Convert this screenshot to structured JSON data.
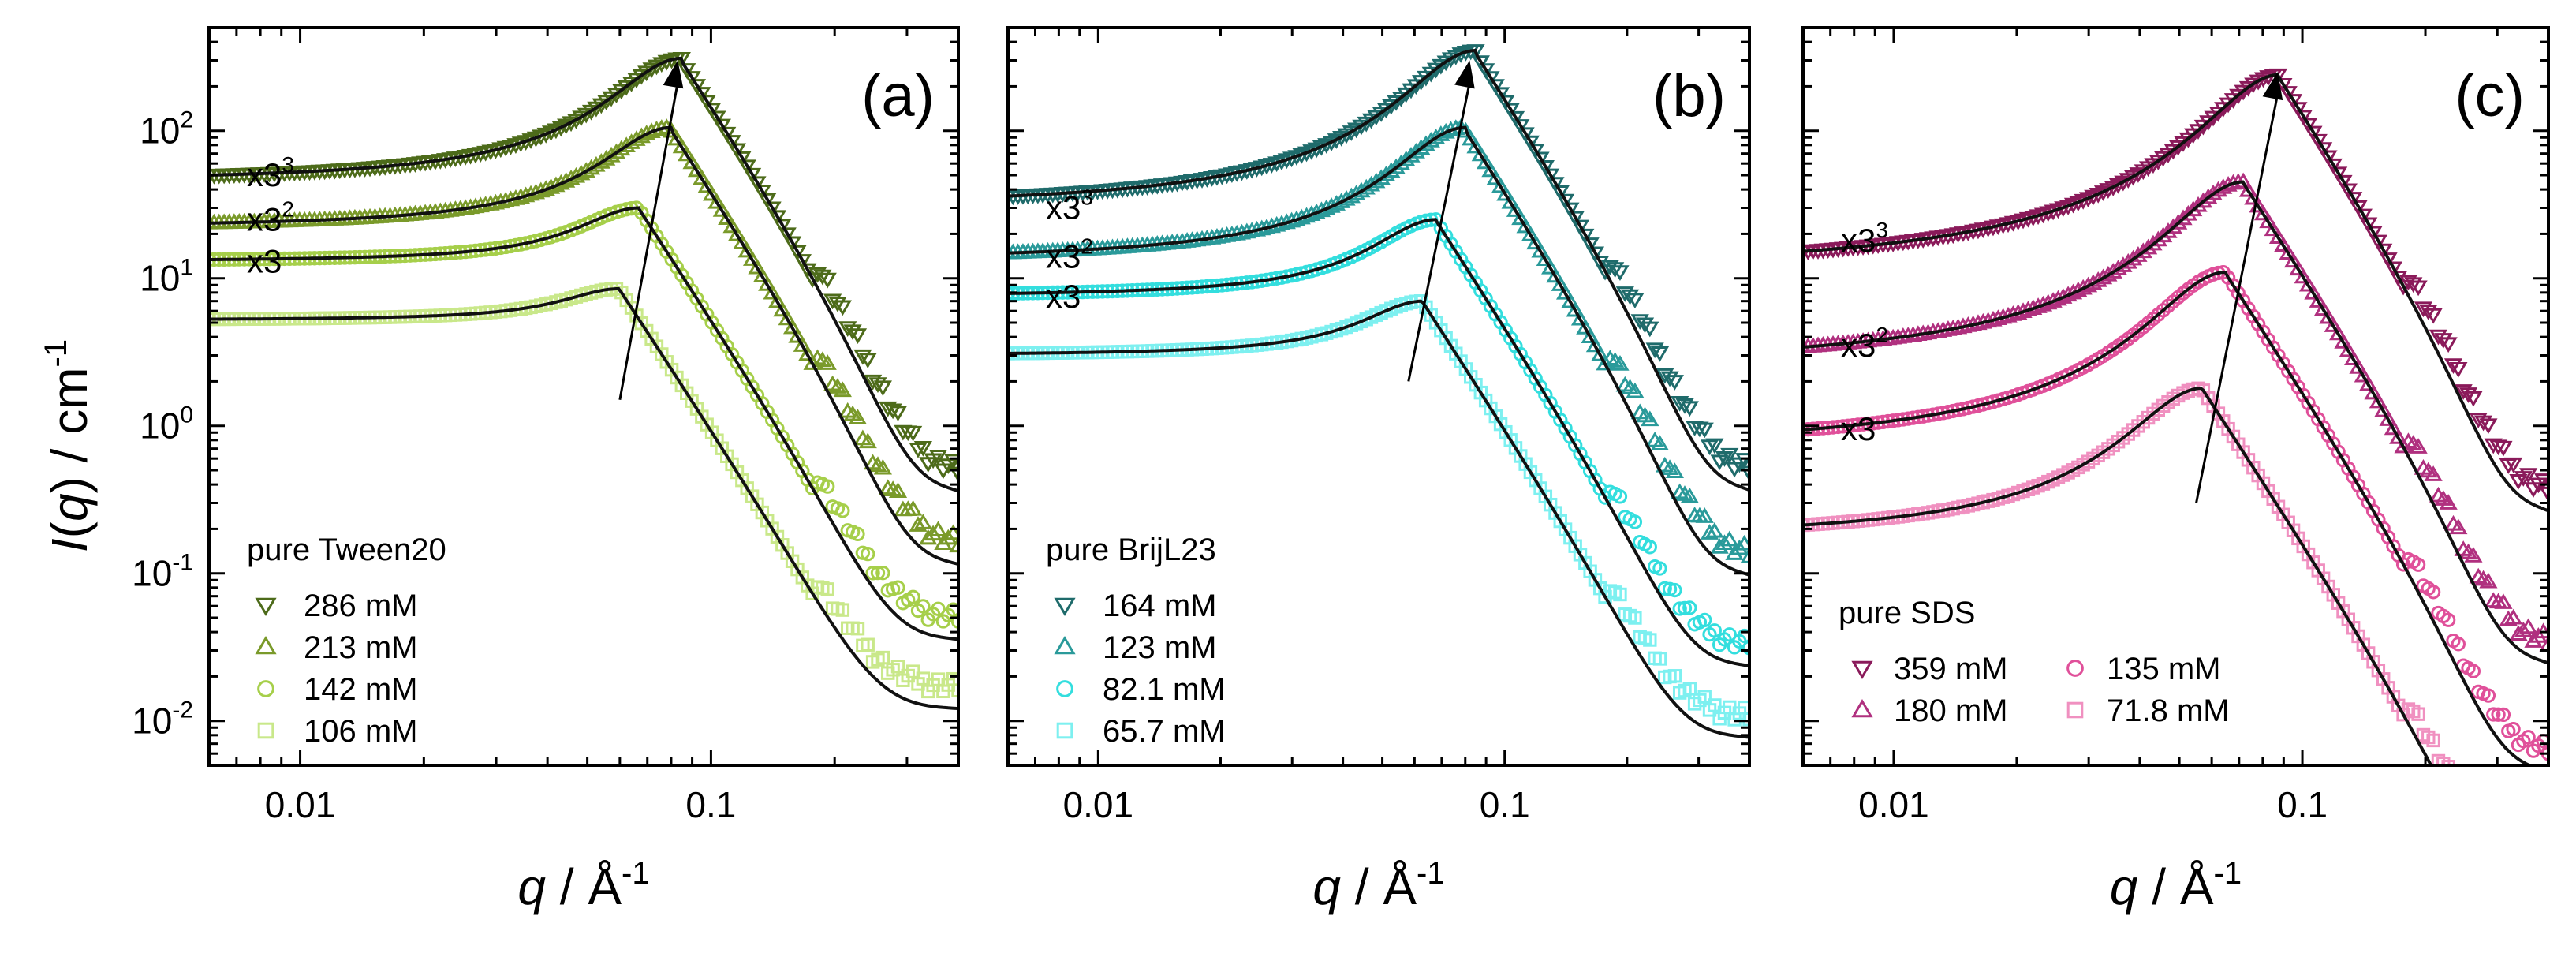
{
  "figure": {
    "ylabel_main": "I(q) / cm",
    "ylabel_italic": "I",
    "ylabel_q": "q",
    "ylabel_sup": "-1",
    "xlabel_q": "q",
    "xlabel_unit": " / Å",
    "xlabel_sup": "-1",
    "yticks": [
      {
        "base": "10",
        "exp": "2",
        "value": 100
      },
      {
        "base": "10",
        "exp": "1",
        "value": 10
      },
      {
        "base": "10",
        "exp": "0",
        "value": 1
      },
      {
        "base": "10",
        "exp": "-1",
        "value": 0.1
      },
      {
        "base": "10",
        "exp": "-2",
        "value": 0.01
      }
    ],
    "xticks": [
      {
        "label": "0.01",
        "value": 0.01
      },
      {
        "label": "0.1",
        "value": 0.1
      }
    ]
  },
  "chart_data": [
    {
      "type": "scatter",
      "panel_label": "(a)",
      "legend_title": "pure Tween20",
      "xlim": [
        0.006,
        0.4
      ],
      "ylim": [
        0.005,
        500
      ],
      "xscale": "log",
      "yscale": "log",
      "scale_labels": [
        {
          "base": "x3",
          "exp": "3",
          "y": 50
        },
        {
          "base": "x3",
          "exp": "2",
          "y": 25
        },
        {
          "base": "x3",
          "exp": "",
          "y": 13
        }
      ],
      "arrow": {
        "from": [
          0.06,
          1.5
        ],
        "to": [
          0.083,
          300
        ]
      },
      "series": [
        {
          "name": "286 mM",
          "marker": "tri-down",
          "color": "#4d6b1a",
          "baseline": 45,
          "peak_q": 0.085,
          "peak_i": 310
        },
        {
          "name": "213 mM",
          "marker": "tri-up",
          "color": "#7a9a2a",
          "baseline": 22,
          "peak_q": 0.08,
          "peak_i": 105
        },
        {
          "name": "142 mM",
          "marker": "circle",
          "color": "#a6cf4a",
          "baseline": 13,
          "peak_q": 0.067,
          "peak_i": 30
        },
        {
          "name": "106 mM",
          "marker": "square",
          "color": "#c9e88a",
          "baseline": 5.2,
          "peak_q": 0.06,
          "peak_i": 8.5
        }
      ]
    },
    {
      "type": "scatter",
      "panel_label": "(b)",
      "legend_title": "pure BrijL23",
      "xlim": [
        0.006,
        0.4
      ],
      "ylim": [
        0.005,
        500
      ],
      "xscale": "log",
      "yscale": "log",
      "scale_labels": [
        {
          "base": "x3",
          "exp": "3",
          "y": 30
        },
        {
          "base": "x3",
          "exp": "2",
          "y": 14
        },
        {
          "base": "x3",
          "exp": "",
          "y": 7.5
        }
      ],
      "arrow": {
        "from": [
          0.058,
          2
        ],
        "to": [
          0.082,
          300
        ]
      },
      "series": [
        {
          "name": "164 mM",
          "marker": "tri-down",
          "color": "#1f6b6b",
          "baseline": 30,
          "peak_q": 0.085,
          "peak_i": 350
        },
        {
          "name": "123 mM",
          "marker": "tri-up",
          "color": "#2a9a9a",
          "baseline": 13,
          "peak_q": 0.08,
          "peak_i": 105
        },
        {
          "name": "82.1 mM",
          "marker": "circle",
          "color": "#33dede",
          "baseline": 7.5,
          "peak_q": 0.068,
          "peak_i": 25
        },
        {
          "name": "65.7 mM",
          "marker": "square",
          "color": "#7df0f0",
          "baseline": 3,
          "peak_q": 0.063,
          "peak_i": 7
        }
      ]
    },
    {
      "type": "scatter",
      "panel_label": "(c)",
      "legend_title": "pure SDS",
      "xlim": [
        0.006,
        0.4
      ],
      "ylim": [
        0.005,
        500
      ],
      "xscale": "log",
      "yscale": "log",
      "scale_labels": [
        {
          "base": "x3",
          "exp": "3",
          "y": 18
        },
        {
          "base": "x3",
          "exp": "2",
          "y": 3.5
        },
        {
          "base": "x3",
          "exp": "",
          "y": 0.95
        }
      ],
      "arrow": {
        "from": [
          0.055,
          0.3
        ],
        "to": [
          0.087,
          250
        ]
      },
      "series": [
        {
          "name": "359 mM",
          "marker": "tri-down",
          "color": "#8a1a5a",
          "baseline": 11,
          "peak_q": 0.088,
          "peak_i": 240
        },
        {
          "name": "180 mM",
          "marker": "tri-up",
          "color": "#b0307f",
          "baseline": 2.5,
          "peak_q": 0.072,
          "peak_i": 45
        },
        {
          "name": "135 mM",
          "marker": "circle",
          "color": "#e0509a",
          "baseline": 0.7,
          "peak_q": 0.065,
          "peak_i": 11
        },
        {
          "name": "71.8 mM",
          "marker": "square",
          "color": "#f090c0",
          "baseline": 0.17,
          "peak_q": 0.057,
          "peak_i": 1.8
        }
      ]
    }
  ]
}
